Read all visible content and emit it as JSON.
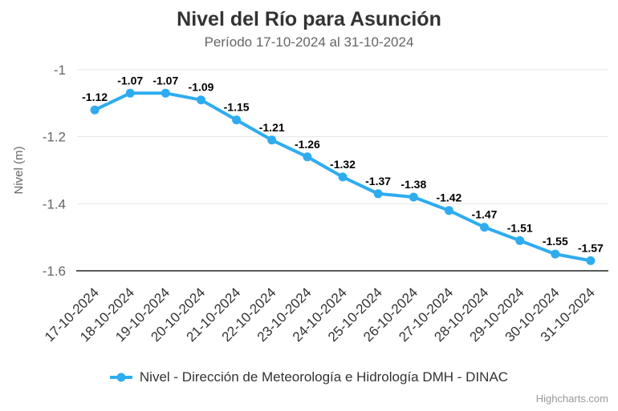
{
  "chart_data": {
    "type": "line",
    "title": "Nivel del Río para Asunción",
    "subtitle": "Período 17-10-2024 al 31-10-2024",
    "xlabel": "",
    "ylabel": "Nivel (m)",
    "categories": [
      "17-10-2024",
      "18-10-2024",
      "19-10-2024",
      "20-10-2024",
      "21-10-2024",
      "22-10-2024",
      "23-10-2024",
      "24-10-2024",
      "25-10-2024",
      "26-10-2024",
      "27-10-2024",
      "28-10-2024",
      "29-10-2024",
      "30-10-2024",
      "31-10-2024"
    ],
    "series": [
      {
        "name": "Nivel - Dirección de Meteorología e Hidrología DMH - DINAC",
        "values": [
          -1.12,
          -1.07,
          -1.07,
          -1.09,
          -1.15,
          -1.21,
          -1.26,
          -1.32,
          -1.37,
          -1.38,
          -1.42,
          -1.47,
          -1.51,
          -1.55,
          -1.57
        ]
      }
    ],
    "ylim": [
      -1.6,
      -1.0
    ],
    "yticks": [
      -1,
      -1.2,
      -1.4,
      -1.6
    ],
    "ytick_labels": [
      "-1",
      "-1.2",
      "-1.4",
      "-1.6"
    ],
    "grid": true,
    "data_labels": true,
    "xlabel_rotation": -45,
    "legend_position": "bottom",
    "colors": {
      "series": "#2FACEF",
      "grid": "#e6e6e6",
      "axis_line": "#424242",
      "title": "#333333",
      "subtitle": "#666666",
      "y_labels": "#666666",
      "x_labels": "#333333",
      "y_title": "#666666",
      "data_label": "#000000",
      "legend_text": "#333333",
      "credits": "#999999",
      "background": "#ffffff"
    }
  },
  "credits": {
    "label": "Highcharts.com"
  }
}
